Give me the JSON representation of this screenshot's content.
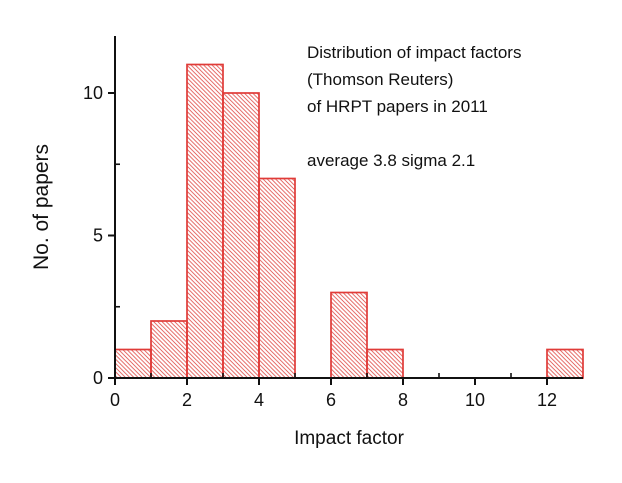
{
  "chart_data": {
    "type": "bar",
    "subtype": "histogram",
    "annotation_lines": [
      "Distribution of impact factors",
      "(Thomson Reuters)",
      "of HRPT papers in 2011"
    ],
    "stats_annotation": "average 3.8 sigma 2.1",
    "xlabel": "Impact factor",
    "ylabel": "No. of papers",
    "bin_edges": [
      0,
      1,
      2,
      3,
      4,
      5,
      6,
      7,
      8,
      9,
      10,
      11,
      12,
      13
    ],
    "counts": [
      1,
      2,
      11,
      10,
      7,
      0,
      3,
      1,
      0,
      0,
      0,
      0,
      1
    ],
    "xlim": [
      0,
      13
    ],
    "ylim": [
      0,
      12
    ],
    "x_major_ticks": [
      0,
      2,
      4,
      6,
      8,
      10,
      12
    ],
    "x_minor_ticks": [
      1,
      3,
      5,
      7,
      9,
      11
    ],
    "y_major_ticks": [
      0,
      5,
      10
    ],
    "y_minor_ticks": [
      2.5,
      7.5
    ],
    "legend": null,
    "grid": "off",
    "colors": {
      "bar_edge": "#e03b38",
      "bar_hatch": "#e0504c",
      "axis": "#111111",
      "background": "#ffffff"
    }
  }
}
